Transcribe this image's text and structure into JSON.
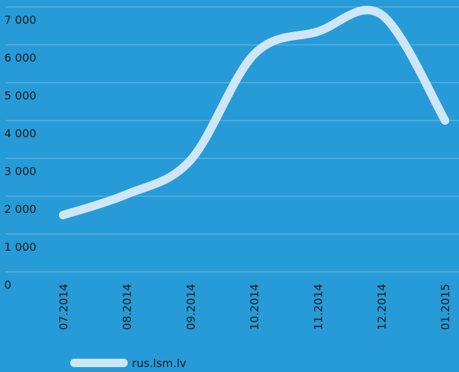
{
  "chart_data": {
    "type": "line",
    "categories": [
      "07.2014",
      "08.2014",
      "09.2014",
      "10.2014",
      "11.2014",
      "12.2014",
      "01.2015"
    ],
    "series": [
      {
        "name": "rus.lsm.lv",
        "color": "#cfe6f7",
        "values": [
          1500,
          2050,
          2950,
          5750,
          6350,
          6800,
          4000
        ]
      }
    ],
    "ylim": [
      0,
      7000
    ],
    "yticks": [
      {
        "value": 0,
        "label": "0"
      },
      {
        "value": 1000,
        "label": "1 000"
      },
      {
        "value": 2000,
        "label": "2 000"
      },
      {
        "value": 3000,
        "label": "3 000"
      },
      {
        "value": 4000,
        "label": "4 000"
      },
      {
        "value": 5000,
        "label": "5 000"
      },
      {
        "value": 6000,
        "label": "6 000"
      },
      {
        "value": 7000,
        "label": "7 000"
      }
    ],
    "grid": true
  }
}
